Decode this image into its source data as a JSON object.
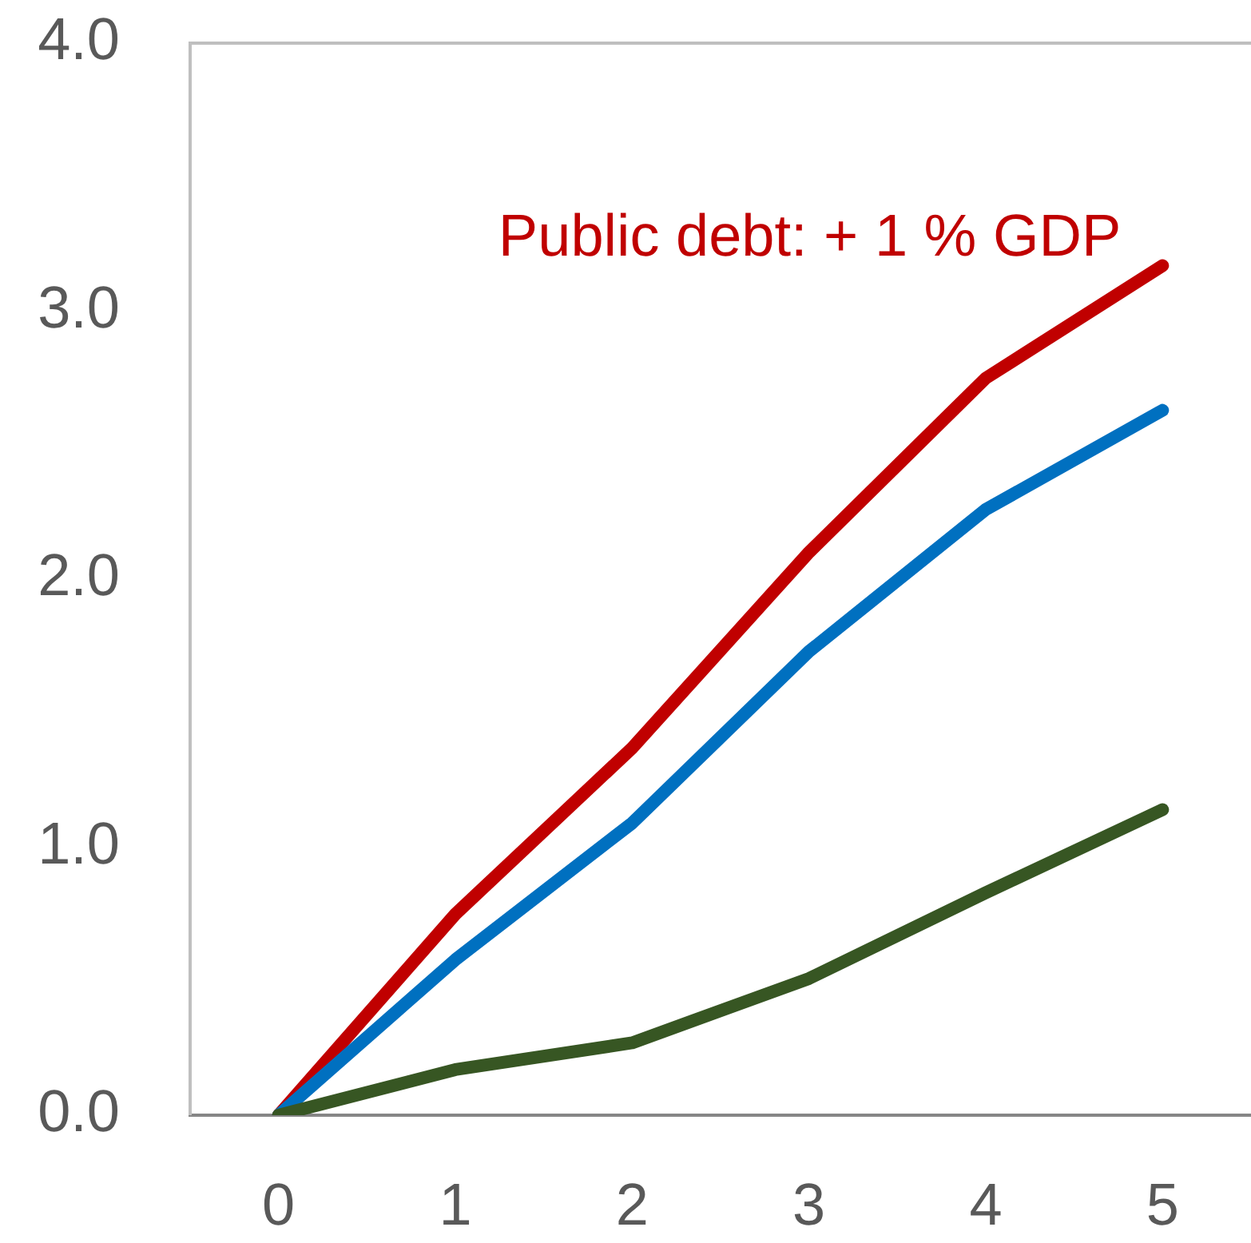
{
  "chart_data": {
    "type": "line",
    "categories": [
      "0",
      "1",
      "2",
      "3",
      "4",
      "5"
    ],
    "ylim": [
      0,
      4
    ],
    "yticks": [
      {
        "value": 0,
        "label": "0.0"
      },
      {
        "value": 1,
        "label": "1.0"
      },
      {
        "value": 2,
        "label": "2.0"
      },
      {
        "value": 3,
        "label": "3.0"
      },
      {
        "value": 4,
        "label": "4.0"
      }
    ],
    "line_style": "solid",
    "series": [
      {
        "name": "Public debt: + 1 % GDP",
        "color": "#c00000",
        "values": [
          0,
          0.75,
          1.37,
          2.1,
          2.75,
          3.17
        ]
      },
      {
        "color": "#0070c0",
        "values": [
          0,
          0.58,
          1.09,
          1.73,
          2.26,
          2.63
        ]
      },
      {
        "color": "#375623",
        "values": [
          0,
          0.17,
          0.27,
          0.51,
          0.83,
          1.14
        ]
      }
    ]
  }
}
